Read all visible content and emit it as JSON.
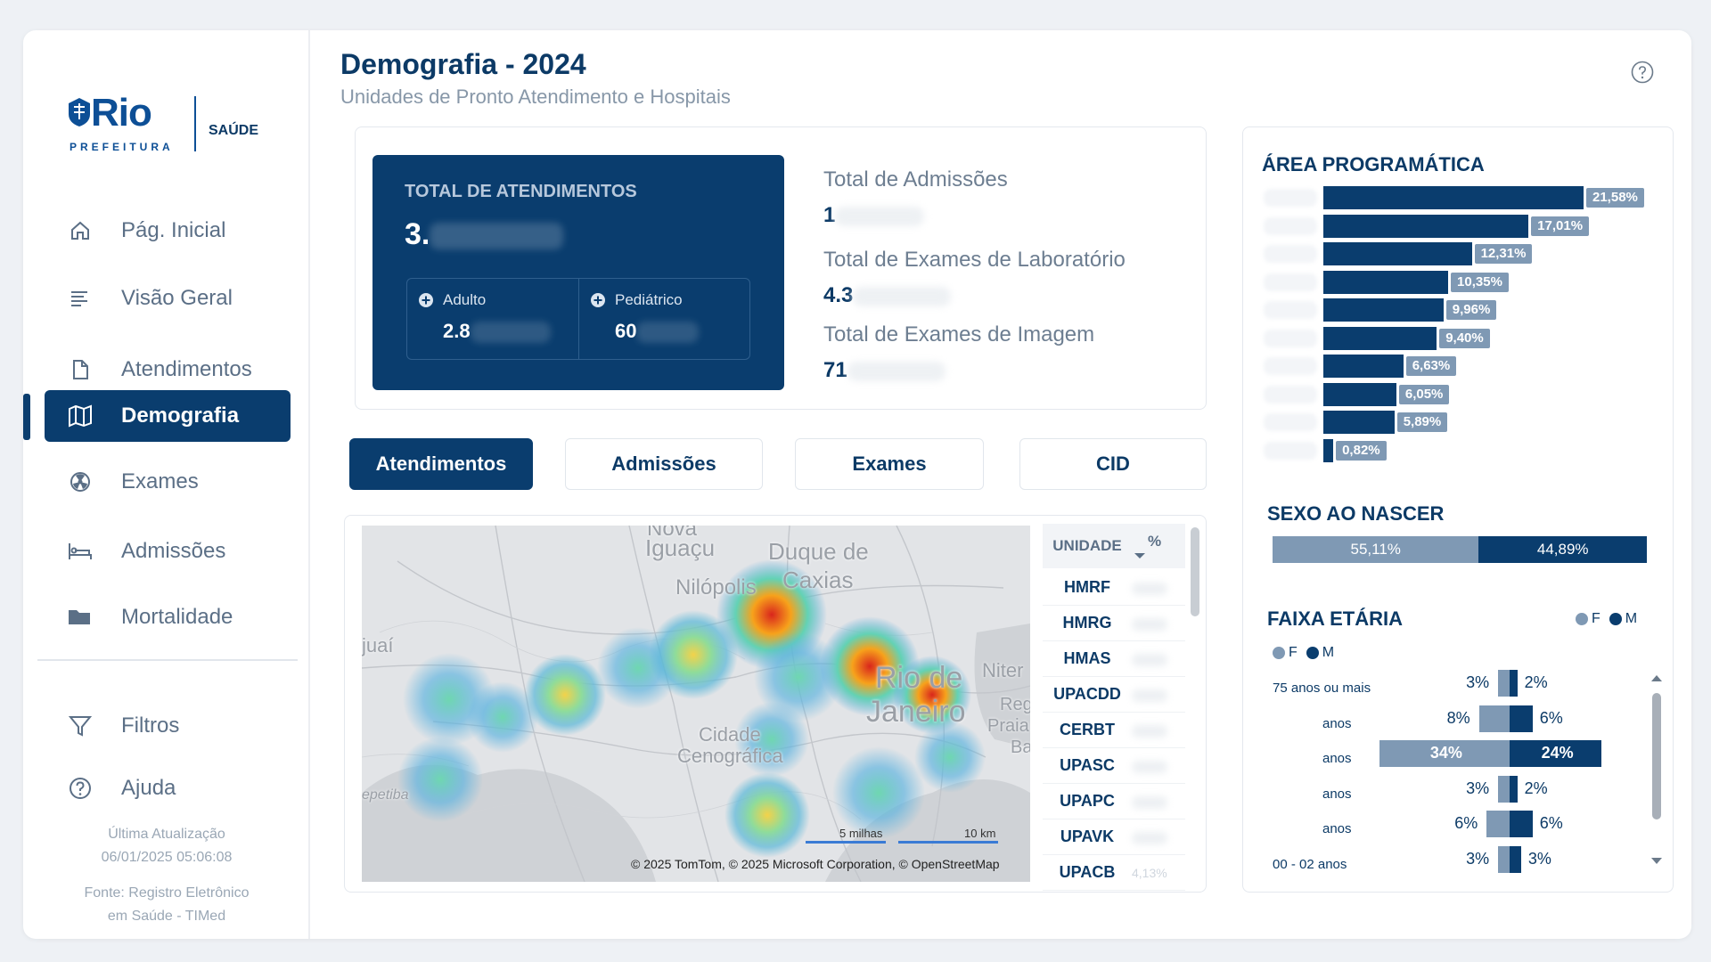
{
  "sidebar": {
    "logo": {
      "rio": "Rio",
      "prefeitura": "PREFEITURA",
      "saude": "SAÚDE"
    },
    "items": [
      {
        "label": "Pág. Inicial",
        "icon": "home-icon"
      },
      {
        "label": "Visão Geral",
        "icon": "list-icon"
      },
      {
        "label": "Atendimentos",
        "icon": "document-icon"
      },
      {
        "label": "Demografia",
        "icon": "map-icon",
        "active": true
      },
      {
        "label": "Exames",
        "icon": "radiation-icon"
      },
      {
        "label": "Admissões",
        "icon": "hospital-bed-icon"
      },
      {
        "label": "Mortalidade",
        "icon": "folder-icon"
      }
    ],
    "footer_items": [
      {
        "label": "Filtros",
        "icon": "filter-icon"
      },
      {
        "label": "Ajuda",
        "icon": "help-icon"
      }
    ],
    "update_label": "Última Atualização",
    "update_value": "06/01/2025 05:06:08",
    "source_line1": "Fonte: Registro Eletrônico",
    "source_line2": "em Saúde - TIMed"
  },
  "header": {
    "title": "Demografia - 2024",
    "subtitle": "Unidades de Pronto Atendimento e Hospitais"
  },
  "kpi": {
    "total_label": "TOTAL DE ATENDIMENTOS",
    "total_value": "3.",
    "adulto_label": "Adulto",
    "adulto_value": "2.8",
    "pediatrico_label": "Pediátrico",
    "pediatrico_value": "60",
    "admissoes_label": "Total de Admissões",
    "admissoes_value": "1",
    "lab_label": "Total de Exames de Laboratório",
    "lab_value": "4.3",
    "imagem_label": "Total de Exames de Imagem",
    "imagem_value": "71"
  },
  "tabs": [
    "Atendimentos",
    "Admissões",
    "Exames",
    "CID"
  ],
  "map": {
    "labels": [
      "Nova",
      "Iguaçu",
      "Duque de",
      "Caxias",
      "Nilópolis",
      "juaí",
      "Rio de",
      "Janeiro",
      "Niter",
      "Reg",
      "Praia",
      "Ba",
      "Cidade",
      "Cenográfica",
      "epetiba"
    ],
    "scale_miles": "5 milhas",
    "scale_km": "10 km",
    "credits": "© 2025 TomTom, © 2025 Microsoft Corporation, © OpenStreetMap"
  },
  "unit_table": {
    "col_unit": "UNIDADE",
    "col_pct": "%",
    "rows": [
      {
        "unit": "HMRF"
      },
      {
        "unit": "HMRG"
      },
      {
        "unit": "HMAS"
      },
      {
        "unit": "UPACDD"
      },
      {
        "unit": "CERBT"
      },
      {
        "unit": "UPASC"
      },
      {
        "unit": "UPAPC"
      },
      {
        "unit": "UPAVK"
      },
      {
        "unit": "UPACB",
        "pct": "4,13%"
      }
    ]
  },
  "area": {
    "title": "ÁREA PROGRAMÁTICA",
    "values": [
      21.58,
      17.01,
      12.31,
      10.35,
      9.96,
      9.4,
      6.63,
      6.05,
      5.89,
      0.82
    ],
    "labels": [
      "21,58%",
      "17,01%",
      "12,31%",
      "10,35%",
      "9,96%",
      "9,40%",
      "6,63%",
      "6,05%",
      "5,89%",
      "0,82%"
    ]
  },
  "sexo": {
    "title": "SEXO AO NASCER",
    "f_value": 55.11,
    "f_label": "55,11%",
    "m_value": 44.89,
    "m_label": "44,89%"
  },
  "faixa": {
    "title": "FAIXA ETÁRIA",
    "legend_f": "F",
    "legend_m": "M",
    "rows": [
      {
        "label": "75 anos ou mais",
        "f": 3,
        "m": 2,
        "f_label": "3%",
        "m_label": "2%"
      },
      {
        "label": "anos",
        "f": 8,
        "m": 6,
        "f_label": "8%",
        "m_label": "6%"
      },
      {
        "label": "anos",
        "f": 34,
        "m": 24,
        "f_label": "34%",
        "m_label": "24%"
      },
      {
        "label": "anos",
        "f": 3,
        "m": 2,
        "f_label": "3%",
        "m_label": "2%"
      },
      {
        "label": "anos",
        "f": 6,
        "m": 6,
        "f_label": "6%",
        "m_label": "6%"
      },
      {
        "label": "00 - 02 anos",
        "f": 3,
        "m": 3,
        "f_label": "3%",
        "m_label": "3%"
      }
    ]
  },
  "colors": {
    "navy": "#0a3d6e",
    "steel": "#7f99b4"
  }
}
